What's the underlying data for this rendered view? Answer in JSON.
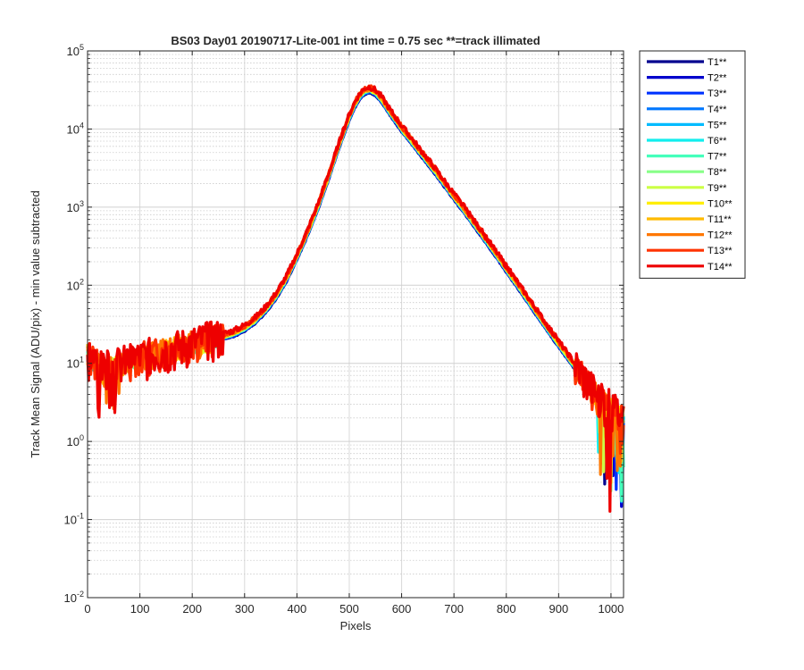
{
  "chart_data": {
    "type": "line",
    "title": "BS03 Day01 20190717-Lite-001 int time = 0.75 sec   **=track illimated",
    "xlabel": "Pixels",
    "ylabel": "Track Mean Signal (ADU/pix) - min value subtracted",
    "xlim": [
      0,
      1024
    ],
    "ylim": [
      0.01,
      100000
    ],
    "yscale": "log",
    "grid": true,
    "minor_grid": true,
    "legend_position": "outside-top-right",
    "x_ticks": [
      0,
      100,
      200,
      300,
      400,
      500,
      600,
      700,
      800,
      900,
      1000
    ],
    "y_ticks": [
      {
        "value": 0.01,
        "base": "10",
        "exp": "-2"
      },
      {
        "value": 0.1,
        "base": "10",
        "exp": "-1"
      },
      {
        "value": 1,
        "base": "10",
        "exp": "0"
      },
      {
        "value": 10,
        "base": "10",
        "exp": "1"
      },
      {
        "value": 100,
        "base": "10",
        "exp": "2"
      },
      {
        "value": 1000,
        "base": "10",
        "exp": "3"
      },
      {
        "value": 10000,
        "base": "10",
        "exp": "4"
      },
      {
        "value": 100000,
        "base": "10",
        "exp": "5"
      }
    ],
    "x": [
      0,
      10,
      20,
      30,
      40,
      50,
      60,
      70,
      80,
      100,
      120,
      150,
      180,
      200,
      220,
      250,
      280,
      300,
      320,
      340,
      360,
      380,
      400,
      420,
      440,
      460,
      480,
      500,
      510,
      520,
      530,
      540,
      550,
      560,
      570,
      580,
      590,
      600,
      620,
      640,
      660,
      680,
      700,
      720,
      740,
      760,
      780,
      800,
      820,
      840,
      860,
      880,
      900,
      920,
      940,
      960,
      975,
      985,
      995,
      1005,
      1015,
      1024
    ],
    "base_values": [
      13,
      11,
      9,
      8,
      8.5,
      9,
      9.5,
      10,
      10.5,
      11.5,
      12.5,
      14,
      16,
      17.5,
      19,
      21,
      24,
      28,
      35,
      48,
      72,
      120,
      230,
      460,
      1000,
      2400,
      6000,
      14000,
      20000,
      26000,
      30500,
      31500,
      29000,
      24500,
      19500,
      15500,
      12500,
      10000,
      6800,
      4600,
      3100,
      2050,
      1350,
      900,
      590,
      385,
      250,
      160,
      103,
      66,
      42,
      27,
      17.5,
      11.5,
      7.5,
      5,
      3.5,
      3,
      2.8,
      2.5,
      2.2,
      2
    ],
    "series": [
      {
        "name": "T1**",
        "color": "#00008f",
        "scale": 0.92,
        "noise": 0.05,
        "seed": 1
      },
      {
        "name": "T2**",
        "color": "#0000cc",
        "scale": 0.94,
        "noise": 0.06,
        "seed": 2
      },
      {
        "name": "T3**",
        "color": "#0033ff",
        "scale": 0.95,
        "noise": 0.07,
        "seed": 3
      },
      {
        "name": "T4**",
        "color": "#0077ff",
        "scale": 0.96,
        "noise": 0.08,
        "seed": 4
      },
      {
        "name": "T5**",
        "color": "#00bbff",
        "scale": 0.97,
        "noise": 0.09,
        "seed": 5
      },
      {
        "name": "T6**",
        "color": "#11eeee",
        "scale": 0.98,
        "noise": 0.1,
        "seed": 6
      },
      {
        "name": "T7**",
        "color": "#44ffbb",
        "scale": 0.99,
        "noise": 0.11,
        "seed": 7
      },
      {
        "name": "T8**",
        "color": "#88ff88",
        "scale": 1.0,
        "noise": 0.12,
        "seed": 8
      },
      {
        "name": "T9**",
        "color": "#ccff44",
        "scale": 1.01,
        "noise": 0.13,
        "seed": 9
      },
      {
        "name": "T10**",
        "color": "#ffee00",
        "scale": 1.02,
        "noise": 0.15,
        "seed": 10
      },
      {
        "name": "T11**",
        "color": "#ffbb00",
        "scale": 1.04,
        "noise": 0.17,
        "seed": 11
      },
      {
        "name": "T12**",
        "color": "#ff7700",
        "scale": 1.06,
        "noise": 0.19,
        "seed": 12
      },
      {
        "name": "T13**",
        "color": "#ff3300",
        "scale": 1.08,
        "noise": 0.22,
        "seed": 13
      },
      {
        "name": "T14**",
        "color": "#ee0000",
        "scale": 1.1,
        "noise": 0.26,
        "seed": 14
      }
    ]
  }
}
